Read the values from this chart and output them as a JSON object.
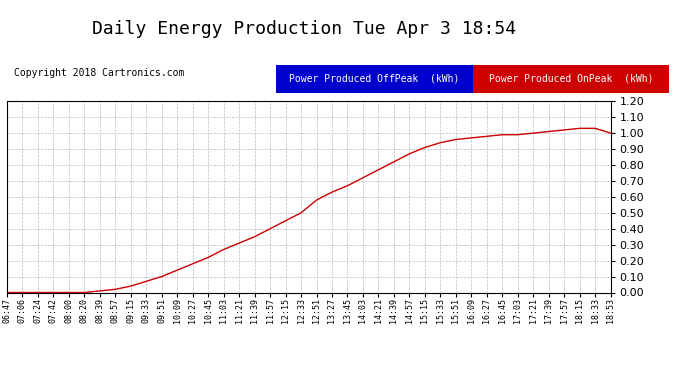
{
  "title": "Daily Energy Production Tue Apr 3 18:54",
  "copyright": "Copyright 2018 Cartronics.com",
  "legend_offpeak_label": "Power Produced OffPeak  (kWh)",
  "legend_onpeak_label": "Power Produced OnPeak  (kWh)",
  "legend_offpeak_bg": "#0000cc",
  "legend_onpeak_bg": "#cc0000",
  "legend_text_color": "#ffffff",
  "line_color": "#cc0000",
  "background_color": "#ffffff",
  "plot_bg_color": "#ffffff",
  "grid_color": "#bbbbbb",
  "title_fontsize": 13,
  "ylim": [
    0.0,
    1.2
  ],
  "yticks": [
    0.0,
    0.1,
    0.2,
    0.3,
    0.4,
    0.5,
    0.6,
    0.7,
    0.8,
    0.9,
    1.0,
    1.1,
    1.2
  ],
  "xtick_labels": [
    "06:47",
    "07:06",
    "07:24",
    "07:42",
    "08:00",
    "08:20",
    "08:39",
    "08:57",
    "09:15",
    "09:33",
    "09:51",
    "10:09",
    "10:27",
    "10:45",
    "11:03",
    "11:21",
    "11:39",
    "11:57",
    "12:15",
    "12:33",
    "12:51",
    "13:27",
    "13:45",
    "14:03",
    "14:21",
    "14:39",
    "14:57",
    "15:15",
    "15:33",
    "15:51",
    "16:09",
    "16:27",
    "16:45",
    "17:03",
    "17:21",
    "17:39",
    "17:57",
    "18:15",
    "18:33",
    "18:53"
  ],
  "y_values": [
    0.0,
    0.0,
    0.0,
    0.0,
    0.0,
    0.0,
    0.01,
    0.02,
    0.04,
    0.07,
    0.1,
    0.14,
    0.18,
    0.22,
    0.27,
    0.31,
    0.35,
    0.4,
    0.45,
    0.5,
    0.58,
    0.63,
    0.67,
    0.72,
    0.77,
    0.82,
    0.87,
    0.91,
    0.94,
    0.96,
    0.97,
    0.98,
    0.99,
    0.99,
    1.0,
    1.01,
    1.02,
    1.03,
    1.03,
    1.0
  ]
}
